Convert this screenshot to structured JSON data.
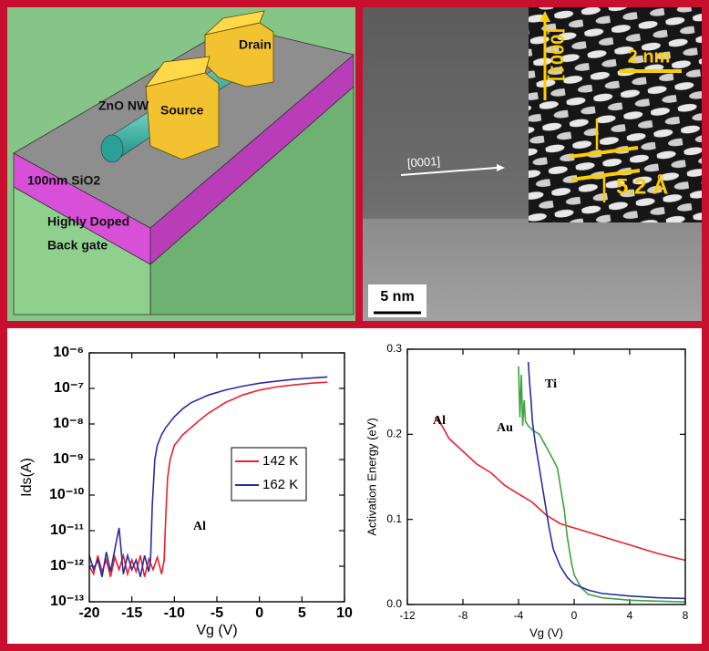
{
  "diagram": {
    "drain": "Drain",
    "nanowire": "ZnO NW",
    "source": "Source",
    "oxide": "100nm SiO2",
    "gate_line1": "Highly Doped",
    "gate_line2": "Back gate"
  },
  "micrograph": {
    "direction": "[0001]",
    "inset_direction": "[0001]",
    "inset_scale": "2 nm",
    "spacing": "5.2 Å",
    "scale": "5 nm"
  },
  "chart_data": [
    {
      "type": "line",
      "log_y": true,
      "xlabel": "Vg (V)",
      "ylabel": "Ids(A)",
      "annotation": "Al",
      "legend": "center",
      "xlim": [
        -20,
        10
      ],
      "xticks": [
        -20,
        -15,
        -10,
        -5,
        0,
        5,
        10
      ],
      "ylim": [
        1e-13,
        1e-06
      ],
      "yticks": [
        {
          "value": 1e-13,
          "label": "10⁻¹³"
        },
        {
          "value": 1e-12,
          "label": "10⁻¹²"
        },
        {
          "value": 1e-11,
          "label": "10⁻¹¹"
        },
        {
          "value": 1e-10,
          "label": "10⁻¹⁰"
        },
        {
          "value": 1e-09,
          "label": "10⁻⁹"
        },
        {
          "value": 1e-08,
          "label": "10⁻⁸"
        },
        {
          "value": 1e-07,
          "label": "10⁻⁷"
        },
        {
          "value": 1e-06,
          "label": "10⁻⁶"
        }
      ],
      "series": [
        {
          "name": "142 K",
          "color": "#e8202a",
          "x": [
            -20,
            -19.5,
            -19,
            -18.5,
            -18,
            -17.5,
            -17,
            -16.5,
            -16,
            -15.5,
            -15,
            -14.5,
            -14,
            -13.5,
            -13,
            -12.5,
            -12,
            -11.5,
            -11.2,
            -11,
            -10.8,
            -10.5,
            -10,
            -9,
            -8,
            -7,
            -6,
            -4,
            -2,
            0,
            2,
            4,
            6,
            8
          ],
          "values": [
            1e-12,
            6e-13,
            2e-12,
            7e-13,
            1.5e-12,
            5e-13,
            1.8e-12,
            8e-13,
            2e-12,
            6e-13,
            1.5e-12,
            7e-13,
            2e-12,
            5e-13,
            1.6e-12,
            8e-13,
            1.8e-12,
            6e-13,
            1.5e-12,
            3e-11,
            3e-10,
            1e-09,
            2.5e-09,
            5e-09,
            8e-09,
            1.3e-08,
            2e-08,
            4e-08,
            6.5e-08,
            9e-08,
            1.1e-07,
            1.25e-07,
            1.4e-07,
            1.5e-07
          ]
        },
        {
          "name": "162 K",
          "color": "#2b2ca0",
          "x": [
            -20,
            -19.5,
            -19,
            -18.5,
            -18,
            -17.5,
            -17,
            -16.5,
            -16,
            -15.5,
            -15,
            -14.5,
            -14,
            -13.5,
            -13,
            -12.8,
            -12.6,
            -12.3,
            -12,
            -11.5,
            -11,
            -10,
            -9,
            -8,
            -6,
            -4,
            -2,
            0,
            2,
            4,
            6,
            8
          ],
          "values": [
            2e-12,
            8e-13,
            1.5e-12,
            5e-13,
            2.5e-12,
            7e-13,
            3e-12,
            1.2e-11,
            6e-13,
            2e-12,
            8e-13,
            1.5e-12,
            5e-13,
            2e-12,
            7e-13,
            1.5e-12,
            5e-11,
            1e-09,
            2.5e-09,
            5e-09,
            8e-09,
            1.6e-08,
            2.7e-08,
            4e-08,
            6.5e-08,
            9e-08,
            1.15e-07,
            1.4e-07,
            1.6e-07,
            1.8e-07,
            1.95e-07,
            2.1e-07
          ]
        }
      ]
    },
    {
      "type": "line",
      "log_y": false,
      "xlabel": "Vg (V)",
      "ylabel": "Activation Energy (eV)",
      "legend": "inline",
      "xlim": [
        -12,
        8
      ],
      "xticks": [
        -12,
        -8,
        -4,
        0,
        4,
        8
      ],
      "ylim": [
        0,
        0.3
      ],
      "yticks": [
        {
          "value": 0,
          "label": "0.0"
        },
        0.1,
        0.2,
        0.3
      ],
      "series": [
        {
          "name": "Al",
          "color": "#e8202a",
          "x": [
            -10,
            -9.5,
            -9,
            -8,
            -7,
            -6,
            -5,
            -4,
            -3,
            -2,
            -1,
            0,
            1,
            2,
            4,
            6,
            8
          ],
          "values": [
            0.22,
            0.21,
            0.195,
            0.18,
            0.165,
            0.155,
            0.14,
            0.13,
            0.12,
            0.105,
            0.095,
            0.09,
            0.085,
            0.08,
            0.07,
            0.06,
            0.052
          ]
        },
        {
          "name": "Au",
          "color": "#3aa63a",
          "x": [
            -4,
            -3.9,
            -3.8,
            -3.7,
            -3.6,
            -3.5,
            -3.3,
            -3,
            -2.5,
            -2,
            -1.5,
            -1.2,
            -1,
            -0.7,
            -0.5,
            -0.2,
            0,
            0.5,
            1,
            2,
            4,
            6,
            8
          ],
          "values": [
            0.28,
            0.22,
            0.27,
            0.21,
            0.24,
            0.215,
            0.21,
            0.205,
            0.2,
            0.185,
            0.17,
            0.16,
            0.14,
            0.11,
            0.08,
            0.05,
            0.035,
            0.02,
            0.012,
            0.008,
            0.005,
            0.004,
            0.003
          ]
        },
        {
          "name": "Ti",
          "color": "#2b2ca0",
          "x": [
            -3.3,
            -3.2,
            -3.1,
            -3,
            -2.8,
            -2.5,
            -2.2,
            -2,
            -1.8,
            -1.5,
            -1,
            -0.5,
            0,
            1,
            2,
            4,
            6,
            8
          ],
          "values": [
            0.285,
            0.26,
            0.24,
            0.215,
            0.19,
            0.16,
            0.13,
            0.11,
            0.09,
            0.065,
            0.045,
            0.032,
            0.024,
            0.017,
            0.013,
            0.01,
            0.008,
            0.007
          ]
        }
      ]
    }
  ]
}
